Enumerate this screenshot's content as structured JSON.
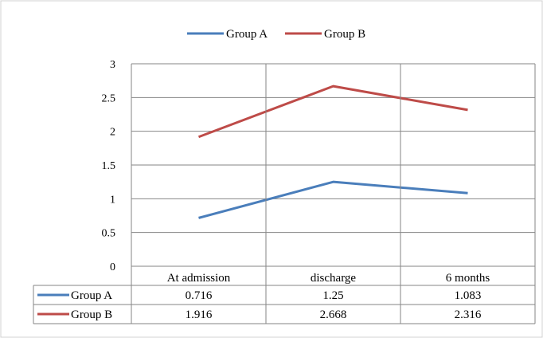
{
  "chart_data": {
    "type": "line",
    "categories": [
      "At admission",
      "discharge",
      "6 months"
    ],
    "series": [
      {
        "name": "Group A",
        "color": "#4a7ebb",
        "values": [
          0.716,
          1.25,
          1.083
        ]
      },
      {
        "name": "Group B",
        "color": "#be4b48",
        "values": [
          1.916,
          2.668,
          2.316
        ]
      }
    ],
    "ylim": [
      0,
      3
    ],
    "yticks": [
      "0",
      "0.5",
      "1",
      "1.5",
      "2",
      "2.5",
      "3"
    ],
    "table": {
      "rows": [
        {
          "name": "Group A",
          "cells": [
            "0.716",
            "1.25",
            "1.083"
          ]
        },
        {
          "name": "Group B",
          "cells": [
            "1.916",
            "2.668",
            "2.316"
          ]
        }
      ]
    },
    "legend": {
      "position": "top",
      "entries": [
        "Group A",
        "Group B"
      ]
    },
    "grid": true,
    "title": "",
    "xlabel": "",
    "ylabel": ""
  }
}
